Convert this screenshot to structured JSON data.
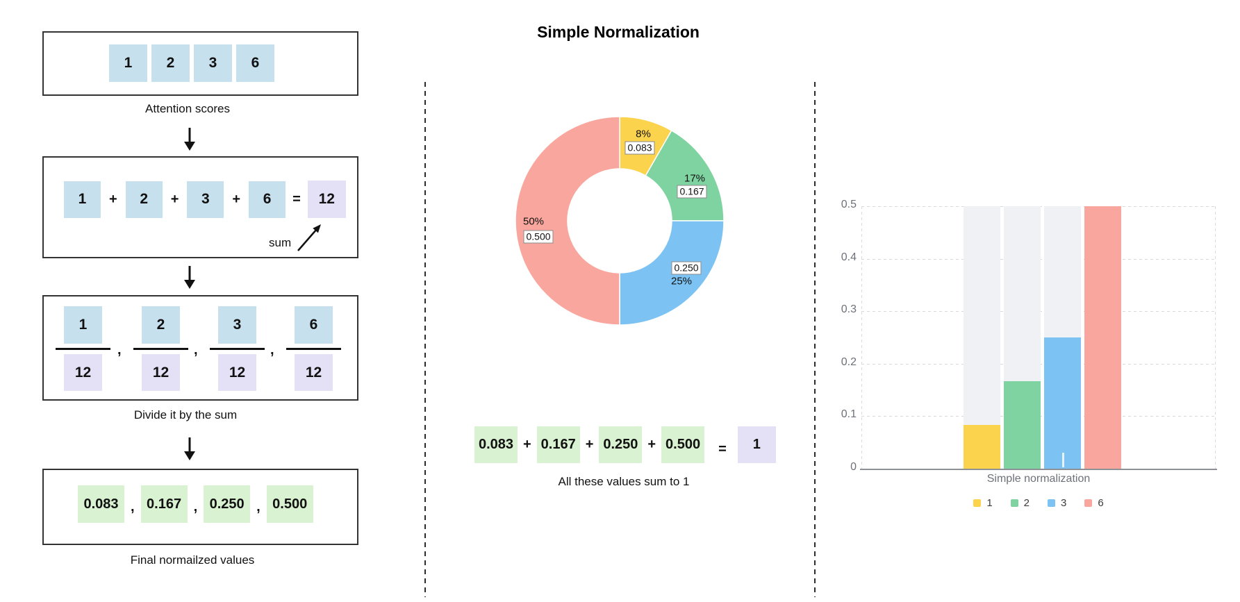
{
  "symbols": {
    "plus": "+",
    "equals": "=",
    "comma": ","
  },
  "left_panel": {
    "step1": {
      "values": [
        "1",
        "2",
        "3",
        "6"
      ],
      "caption": "Attention scores"
    },
    "step2": {
      "terms": [
        "1",
        "2",
        "3",
        "6"
      ],
      "result": "12",
      "annotation": "sum"
    },
    "step3": {
      "numerators": [
        "1",
        "2",
        "3",
        "6"
      ],
      "denominators": [
        "12",
        "12",
        "12",
        "12"
      ],
      "caption": "Divide it by the sum"
    },
    "step4": {
      "values": [
        "0.083",
        "0.167",
        "0.250",
        "0.500"
      ],
      "caption": "Final normailzed values"
    }
  },
  "middle_panel": {
    "title": "Simple Normalization",
    "donut_labels": [
      {
        "percent": "8%",
        "value": "0.083"
      },
      {
        "percent": "17%",
        "value": "0.167"
      },
      {
        "percent": "25%",
        "value": "0.250"
      },
      {
        "percent": "50%",
        "value": "0.500"
      }
    ],
    "equation": {
      "terms": [
        "0.083",
        "0.167",
        "0.250",
        "0.500"
      ],
      "result": "1"
    },
    "caption": "All these values sum to 1"
  },
  "right_panel": {
    "yticks": [
      "0.5",
      "0.4",
      "0.3",
      "0.2",
      "0.1",
      "0"
    ],
    "xlabel": "Simple normalization",
    "legend": [
      "1",
      "2",
      "3",
      "6"
    ]
  },
  "chart_data": [
    {
      "type": "pie",
      "subtype": "donut",
      "title": "Simple Normalization",
      "labels": [
        "1",
        "2",
        "3",
        "6"
      ],
      "values": [
        0.083,
        0.167,
        0.25,
        0.5
      ],
      "percent_labels": [
        "8%",
        "17%",
        "25%",
        "50%"
      ],
      "value_labels": [
        "0.083",
        "0.167",
        "0.250",
        "0.500"
      ],
      "colors": [
        "#FBD34D",
        "#7FD3A0",
        "#7CC2F2",
        "#F9A79E"
      ],
      "start_angle_deg": 0,
      "direction": "clockwise",
      "legend_position": "none"
    },
    {
      "type": "bar",
      "categories": [
        "Simple normalization"
      ],
      "series": [
        {
          "name": "1",
          "values": [
            0.083
          ],
          "color": "#FBD34D"
        },
        {
          "name": "2",
          "values": [
            0.167
          ],
          "color": "#7FD3A0"
        },
        {
          "name": "3",
          "values": [
            0.25
          ],
          "color": "#7CC2F2"
        },
        {
          "name": "6",
          "values": [
            0.5
          ],
          "color": "#F9A79E"
        }
      ],
      "ylim": [
        0,
        0.5
      ],
      "yticks": [
        0,
        0.1,
        0.2,
        0.3,
        0.4,
        0.5
      ],
      "xlabel": "Simple normalization",
      "legend_position": "bottom",
      "grid": "dashed",
      "bar_background_color": "#F0F1F5"
    }
  ],
  "colors": {
    "score_box": "#C7E0EE",
    "sum_box": "#E4E0F6",
    "normalized_box": "#D9F2D1",
    "divider": "#2B2B2B",
    "axis_text": "#6E7079"
  }
}
